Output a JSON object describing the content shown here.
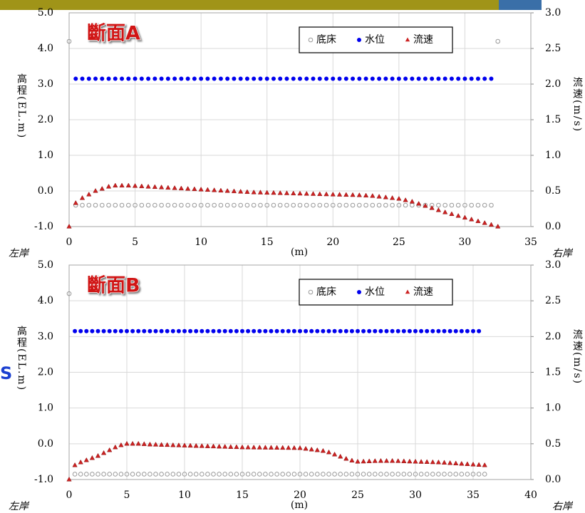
{
  "side_label": "S",
  "chart_data": [
    {
      "type": "scatter",
      "title": "斷面A",
      "x_label": "(m)",
      "y_label": "高程(EL.m)",
      "y2_label": "流速(m/s)",
      "left_bank": "左岸",
      "right_bank": "右岸",
      "legend": "top-right",
      "grid": true,
      "xlim": [
        0,
        35
      ],
      "xticks": [
        0,
        5,
        10,
        15,
        20,
        25,
        30,
        35
      ],
      "ylim": [
        -1,
        5
      ],
      "yticks": [
        {
          "value": -1,
          "label": "-1.0"
        },
        {
          "value": 0,
          "label": "0.0"
        },
        {
          "value": 1,
          "label": "1.0"
        },
        {
          "value": 2,
          "label": "2.0"
        },
        {
          "value": 3,
          "label": "3.0"
        },
        {
          "value": 4,
          "label": "4.0"
        },
        {
          "value": 5,
          "label": "5.0"
        }
      ],
      "y2lim": [
        0,
        3
      ],
      "y2ticks": [
        {
          "value": 0,
          "label": "0.0"
        },
        {
          "value": 0.5,
          "label": "0.5"
        },
        {
          "value": 1,
          "label": "1.0"
        },
        {
          "value": 1.5,
          "label": "1.5"
        },
        {
          "value": 2,
          "label": "2.0"
        },
        {
          "value": 2.5,
          "label": "2.5"
        },
        {
          "value": 3,
          "label": "3.0"
        }
      ],
      "x": [
        0,
        0.5,
        1,
        1.5,
        2,
        2.5,
        3,
        3.5,
        4,
        4.5,
        5,
        5.5,
        6,
        6.5,
        7,
        7.5,
        8,
        8.5,
        9,
        9.5,
        10,
        10.5,
        11,
        11.5,
        12,
        12.5,
        13,
        13.5,
        14,
        14.5,
        15,
        15.5,
        16,
        16.5,
        17,
        17.5,
        18,
        18.5,
        19,
        19.5,
        20,
        20.5,
        21,
        21.5,
        22,
        22.5,
        23,
        23.5,
        24,
        24.5,
        25,
        25.5,
        26,
        26.5,
        27,
        27.5,
        28,
        28.5,
        29,
        29.5,
        30,
        30.5,
        31,
        31.5,
        32,
        32.5
      ],
      "series": [
        {
          "name": "底床",
          "color": "#999999",
          "marker": "circle-open",
          "values": [
            4.2,
            -0.4,
            -0.4,
            -0.4,
            -0.4,
            -0.4,
            -0.4,
            -0.4,
            -0.4,
            -0.4,
            -0.4,
            -0.4,
            -0.4,
            -0.4,
            -0.4,
            -0.4,
            -0.4,
            -0.4,
            -0.4,
            -0.4,
            -0.4,
            -0.4,
            -0.4,
            -0.4,
            -0.4,
            -0.4,
            -0.4,
            -0.4,
            -0.4,
            -0.4,
            -0.4,
            -0.4,
            -0.4,
            -0.4,
            -0.4,
            -0.4,
            -0.4,
            -0.4,
            -0.4,
            -0.4,
            -0.4,
            -0.4,
            -0.4,
            -0.4,
            -0.4,
            -0.4,
            -0.4,
            -0.4,
            -0.4,
            -0.4,
            -0.4,
            -0.4,
            -0.4,
            -0.4,
            -0.4,
            -0.4,
            -0.4,
            -0.4,
            -0.4,
            -0.4,
            -0.4,
            -0.4,
            -0.4,
            -0.4,
            -0.4,
            4.2
          ]
        },
        {
          "name": "水位",
          "color": "#0000ee",
          "marker": "circle",
          "values": [
            null,
            3.15,
            3.15,
            3.15,
            3.15,
            3.15,
            3.15,
            3.15,
            3.15,
            3.15,
            3.15,
            3.15,
            3.15,
            3.15,
            3.15,
            3.15,
            3.15,
            3.15,
            3.15,
            3.15,
            3.15,
            3.15,
            3.15,
            3.15,
            3.15,
            3.15,
            3.15,
            3.15,
            3.15,
            3.15,
            3.15,
            3.15,
            3.15,
            3.15,
            3.15,
            3.15,
            3.15,
            3.15,
            3.15,
            3.15,
            3.15,
            3.15,
            3.15,
            3.15,
            3.15,
            3.15,
            3.15,
            3.15,
            3.15,
            3.15,
            3.15,
            3.15,
            3.15,
            3.15,
            3.15,
            3.15,
            3.15,
            3.15,
            3.15,
            3.15,
            3.15,
            3.15,
            3.15,
            3.15,
            3.15,
            null
          ]
        },
        {
          "name": "流速",
          "color": "#cc2222",
          "marker": "triangle",
          "axis": "y2",
          "values": [
            0,
            0.33,
            0.4,
            0.45,
            0.5,
            0.53,
            0.56,
            0.575,
            0.575,
            0.575,
            0.57,
            0.565,
            0.56,
            0.555,
            0.55,
            0.545,
            0.54,
            0.535,
            0.53,
            0.525,
            0.52,
            0.515,
            0.51,
            0.505,
            0.5,
            0.495,
            0.49,
            0.485,
            0.48,
            0.478,
            0.475,
            0.473,
            0.47,
            0.468,
            0.465,
            0.463,
            0.46,
            0.458,
            0.455,
            0.453,
            0.45,
            0.448,
            0.445,
            0.443,
            0.44,
            0.435,
            0.43,
            0.42,
            0.41,
            0.4,
            0.39,
            0.37,
            0.35,
            0.32,
            0.29,
            0.26,
            0.23,
            0.2,
            0.175,
            0.15,
            0.125,
            0.1,
            0.075,
            0.05,
            0.025,
            0.0
          ]
        }
      ]
    },
    {
      "type": "scatter",
      "title": "斷面B",
      "x_label": "(m)",
      "y_label": "高程(EL.m)",
      "y2_label": "流速(m/s)",
      "left_bank": "左岸",
      "right_bank": "右岸",
      "legend": "top-right",
      "grid": true,
      "xlim": [
        0,
        40
      ],
      "xticks": [
        0,
        5,
        10,
        15,
        20,
        25,
        30,
        35,
        40
      ],
      "ylim": [
        -1,
        5
      ],
      "yticks": [
        {
          "value": -1,
          "label": "-1.0"
        },
        {
          "value": 0,
          "label": "0.0"
        },
        {
          "value": 1,
          "label": "1.0"
        },
        {
          "value": 2,
          "label": "2.0"
        },
        {
          "value": 3,
          "label": "3.0"
        },
        {
          "value": 4,
          "label": "4.0"
        },
        {
          "value": 5,
          "label": "5.0"
        }
      ],
      "y2lim": [
        0,
        3
      ],
      "y2ticks": [
        {
          "value": 0,
          "label": "0.0"
        },
        {
          "value": 0.5,
          "label": "0.5"
        },
        {
          "value": 1,
          "label": "1.0"
        },
        {
          "value": 1.5,
          "label": "1.5"
        },
        {
          "value": 2,
          "label": "2.0"
        },
        {
          "value": 2.5,
          "label": "2.5"
        },
        {
          "value": 3,
          "label": "3.0"
        }
      ],
      "x": [
        0,
        0.5,
        1,
        1.5,
        2,
        2.5,
        3,
        3.5,
        4,
        4.5,
        5,
        5.5,
        6,
        6.5,
        7,
        7.5,
        8,
        8.5,
        9,
        9.5,
        10,
        10.5,
        11,
        11.5,
        12,
        12.5,
        13,
        13.5,
        14,
        14.5,
        15,
        15.5,
        16,
        16.5,
        17,
        17.5,
        18,
        18.5,
        19,
        19.5,
        20,
        20.5,
        21,
        21.5,
        22,
        22.5,
        23,
        23.5,
        24,
        24.5,
        25,
        25.5,
        26,
        26.5,
        27,
        27.5,
        28,
        28.5,
        29,
        29.5,
        30,
        30.5,
        31,
        31.5,
        32,
        32.5,
        33,
        33.5,
        34,
        34.5,
        35,
        35.5,
        36
      ],
      "series": [
        {
          "name": "底床",
          "color": "#999999",
          "marker": "circle-open",
          "values": [
            4.2,
            -0.85,
            -0.85,
            -0.85,
            -0.85,
            -0.85,
            -0.85,
            -0.85,
            -0.85,
            -0.85,
            -0.85,
            -0.85,
            -0.85,
            -0.85,
            -0.85,
            -0.85,
            -0.85,
            -0.85,
            -0.85,
            -0.85,
            -0.85,
            -0.85,
            -0.85,
            -0.85,
            -0.85,
            -0.85,
            -0.85,
            -0.85,
            -0.85,
            -0.85,
            -0.85,
            -0.85,
            -0.85,
            -0.85,
            -0.85,
            -0.85,
            -0.85,
            -0.85,
            -0.85,
            -0.85,
            -0.85,
            -0.85,
            -0.85,
            -0.85,
            -0.85,
            -0.85,
            -0.85,
            -0.85,
            -0.85,
            -0.85,
            -0.85,
            -0.85,
            -0.85,
            -0.85,
            -0.85,
            -0.85,
            -0.85,
            -0.85,
            -0.85,
            -0.85,
            -0.85,
            -0.85,
            -0.85,
            -0.85,
            -0.85,
            -0.85,
            -0.85,
            -0.85,
            -0.85,
            -0.85,
            -0.85,
            -0.85,
            -0.85
          ]
        },
        {
          "name": "水位",
          "color": "#0000ee",
          "marker": "circle",
          "values": [
            null,
            3.15,
            3.15,
            3.15,
            3.15,
            3.15,
            3.15,
            3.15,
            3.15,
            3.15,
            3.15,
            3.15,
            3.15,
            3.15,
            3.15,
            3.15,
            3.15,
            3.15,
            3.15,
            3.15,
            3.15,
            3.15,
            3.15,
            3.15,
            3.15,
            3.15,
            3.15,
            3.15,
            3.15,
            3.15,
            3.15,
            3.15,
            3.15,
            3.15,
            3.15,
            3.15,
            3.15,
            3.15,
            3.15,
            3.15,
            3.15,
            3.15,
            3.15,
            3.15,
            3.15,
            3.15,
            3.15,
            3.15,
            3.15,
            3.15,
            3.15,
            3.15,
            3.15,
            3.15,
            3.15,
            3.15,
            3.15,
            3.15,
            3.15,
            3.15,
            3.15,
            3.15,
            3.15,
            3.15,
            3.15,
            3.15,
            3.15,
            3.15,
            3.15,
            3.15,
            3.15,
            3.15,
            null
          ]
        },
        {
          "name": "流速",
          "color": "#cc2222",
          "marker": "triangle",
          "axis": "y2",
          "values": [
            0,
            0.2,
            0.24,
            0.27,
            0.3,
            0.33,
            0.37,
            0.41,
            0.45,
            0.48,
            0.5,
            0.5,
            0.5,
            0.495,
            0.49,
            0.488,
            0.485,
            0.483,
            0.48,
            0.478,
            0.475,
            0.473,
            0.47,
            0.468,
            0.465,
            0.463,
            0.46,
            0.458,
            0.455,
            0.453,
            0.45,
            0.449,
            0.448,
            0.447,
            0.446,
            0.445,
            0.444,
            0.443,
            0.442,
            0.441,
            0.44,
            0.43,
            0.42,
            0.41,
            0.4,
            0.38,
            0.35,
            0.32,
            0.29,
            0.265,
            0.25,
            0.252,
            0.255,
            0.258,
            0.26,
            0.26,
            0.26,
            0.258,
            0.255,
            0.252,
            0.25,
            0.247,
            0.245,
            0.242,
            0.24,
            0.235,
            0.23,
            0.225,
            0.22,
            0.215,
            0.21,
            0.205,
            0.2
          ]
        }
      ]
    }
  ]
}
